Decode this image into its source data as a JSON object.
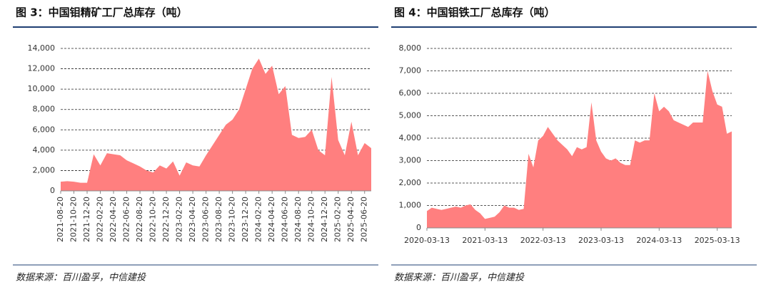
{
  "chart_data": [
    {
      "type": "area",
      "title": "图 3：中国钼精矿工厂总库存（吨）",
      "source": "数据来源：百川盈孚，中信建投",
      "color": "#ff7f7f",
      "grid": true,
      "categories": [
        "2021-08-20",
        null,
        "2021-10-20",
        null,
        "2021-12-20",
        null,
        "2022-02-20",
        null,
        "2022-04-20",
        null,
        "2022-06-20",
        null,
        "2022-08-20",
        null,
        "2022-10-20",
        null,
        "2022-12-20",
        null,
        "2023-02-20",
        null,
        "2023-04-20",
        null,
        "2023-06-20",
        null,
        "2023-08-20",
        null,
        "2023-10-20",
        null,
        "2023-12-20",
        null,
        "2024-02-20",
        null,
        "2024-04-20",
        null,
        "2024-06-20",
        null,
        "2024-08-20",
        null,
        "2024-10-20",
        null,
        "2024-12-20",
        null,
        "2025-02-20",
        null,
        "2025-04-20",
        null,
        "2025-06-20",
        null
      ],
      "values": [
        900,
        950,
        900,
        800,
        800,
        3600,
        2500,
        3700,
        3600,
        3500,
        3000,
        2700,
        2400,
        2000,
        1800,
        2500,
        2200,
        2900,
        1500,
        2800,
        2500,
        2400,
        3500,
        4500,
        5500,
        6500,
        7000,
        8000,
        10000,
        12000,
        13000,
        11500,
        12300,
        9500,
        10300,
        5500,
        5200,
        5300,
        6000,
        4000,
        3500,
        11200,
        5000,
        3500,
        6800,
        3500,
        4700,
        4200
      ],
      "ylim": [
        0,
        14000
      ],
      "yticks": [
        0,
        {
          "value": 2000,
          "label": "2,000"
        },
        {
          "value": 4000,
          "label": "4,000"
        },
        {
          "value": 6000,
          "label": "6,000"
        },
        {
          "value": 8000,
          "label": "8,000"
        },
        {
          "value": 10000,
          "label": "10,000"
        },
        {
          "value": 12000,
          "label": "12,000"
        },
        {
          "value": 14000,
          "label": "14,000"
        }
      ]
    },
    {
      "type": "area",
      "title": "图 4：中国钼铁工厂总库存（吨）",
      "source": "数据来源：百川盈孚，中信建投",
      "color": "#ff7f7f",
      "grid": true,
      "categories": [
        "2020-03-13",
        null,
        null,
        null,
        null,
        null,
        null,
        null,
        null,
        null,
        null,
        null,
        "2021-03-13",
        null,
        null,
        null,
        null,
        null,
        null,
        null,
        null,
        null,
        null,
        null,
        "2022-03-13",
        null,
        null,
        null,
        null,
        null,
        null,
        null,
        null,
        null,
        null,
        null,
        "2023-03-13",
        null,
        null,
        null,
        null,
        null,
        null,
        null,
        null,
        null,
        null,
        null,
        "2024-03-13",
        null,
        null,
        null,
        null,
        null,
        null,
        null,
        null,
        null,
        null,
        null,
        "2025-03-13",
        null,
        null,
        null
      ],
      "values": [
        750,
        900,
        850,
        800,
        850,
        900,
        950,
        900,
        1000,
        1050,
        800,
        650,
        400,
        450,
        500,
        700,
        1000,
        900,
        900,
        800,
        850,
        3300,
        2700,
        3900,
        4100,
        4500,
        4200,
        3900,
        3700,
        3500,
        3200,
        3600,
        3500,
        3600,
        5600,
        3900,
        3400,
        3100,
        3000,
        3100,
        2900,
        2800,
        2800,
        3900,
        3800,
        3900,
        3900,
        6000,
        5200,
        5400,
        5200,
        4800,
        4700,
        4600,
        4500,
        4700,
        4700,
        4700,
        7000,
        6100,
        5500,
        5400,
        4200,
        4300
      ],
      "ylim": [
        0,
        8000
      ],
      "yticks": [
        0,
        {
          "value": 1000,
          "label": "1,000"
        },
        {
          "value": 2000,
          "label": "2,000"
        },
        {
          "value": 3000,
          "label": "3,000"
        },
        {
          "value": 4000,
          "label": "4,000"
        },
        {
          "value": 5000,
          "label": "5,000"
        },
        {
          "value": 6000,
          "label": "6,000"
        },
        {
          "value": 7000,
          "label": "7,000"
        },
        {
          "value": 8000,
          "label": "8,000"
        }
      ]
    }
  ]
}
